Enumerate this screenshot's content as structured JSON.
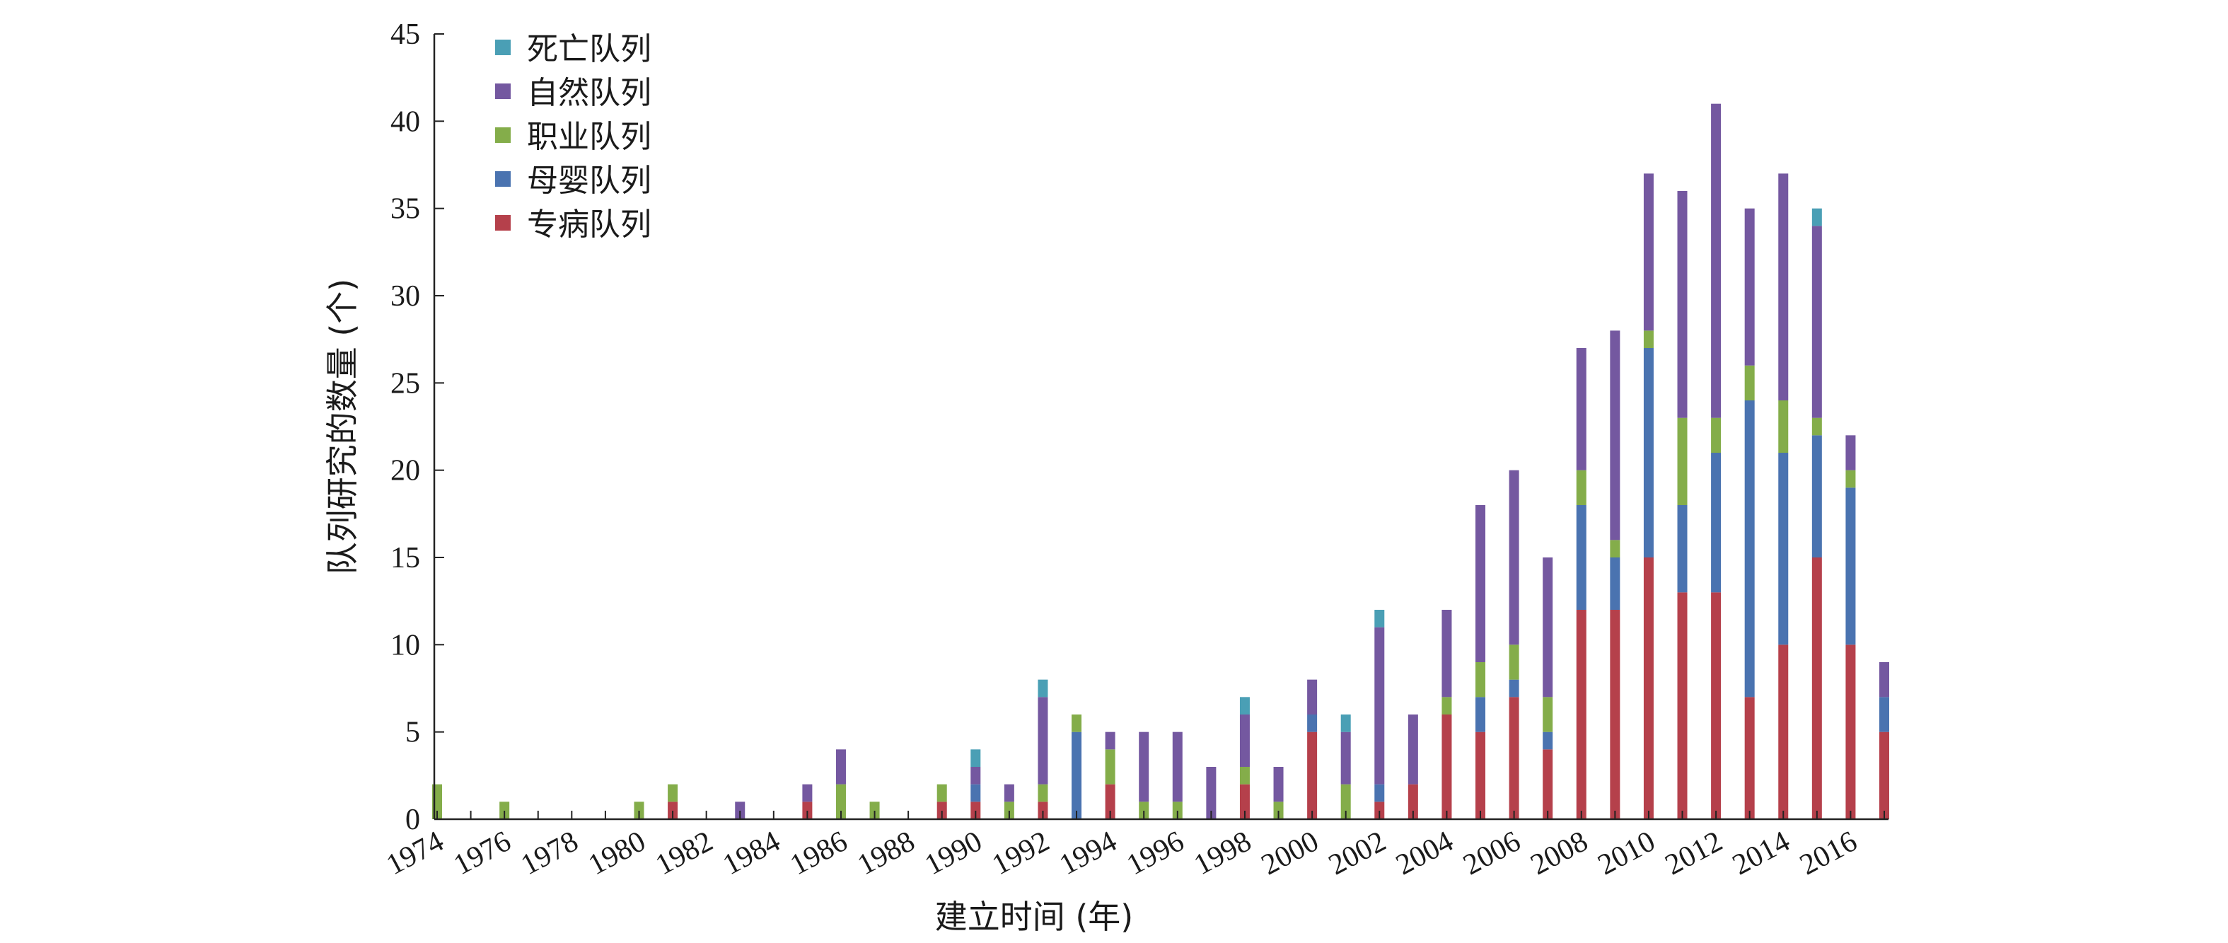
{
  "chart_data": {
    "type": "bar",
    "stacked": true,
    "title": "",
    "xlabel": "建立时间 (年)",
    "ylabel": "队列研究的数量 (个)",
    "ylim": [
      0,
      45
    ],
    "yticks": [
      "0",
      "5",
      "10",
      "15",
      "20",
      "25",
      "30",
      "35",
      "40",
      "45"
    ],
    "xtick_labels": [
      "1974",
      "1976",
      "1978",
      "1980",
      "1982",
      "1984",
      "1986",
      "1988",
      "1990",
      "1992",
      "1994",
      "1996",
      "1998",
      "2000",
      "2002",
      "2004",
      "2006",
      "2008",
      "2010",
      "2012",
      "2014",
      "2016"
    ],
    "categories": [
      1974,
      1975,
      1976,
      1977,
      1978,
      1979,
      1980,
      1981,
      1982,
      1983,
      1984,
      1985,
      1986,
      1987,
      1988,
      1989,
      1990,
      1991,
      1992,
      1993,
      1994,
      1995,
      1996,
      1997,
      1998,
      1999,
      2000,
      2001,
      2002,
      2003,
      2004,
      2005,
      2006,
      2007,
      2008,
      2009,
      2010,
      2011,
      2012,
      2013,
      2014,
      2015,
      2016,
      2017
    ],
    "grid": false,
    "legend_position": "top-left",
    "series": [
      {
        "name": "专病队列",
        "color": "#b5404b",
        "values": [
          0,
          0,
          0,
          0,
          0,
          0,
          0,
          1,
          0,
          0,
          0,
          1,
          0,
          0,
          0,
          1,
          1,
          0,
          1,
          0,
          2,
          0,
          0,
          0,
          2,
          0,
          5,
          0,
          1,
          2,
          6,
          5,
          7,
          4,
          12,
          12,
          15,
          13,
          13,
          7,
          10,
          15,
          10,
          5
        ]
      },
      {
        "name": "母婴队列",
        "color": "#4a73b0",
        "values": [
          0,
          0,
          0,
          0,
          0,
          0,
          0,
          0,
          0,
          0,
          0,
          0,
          0,
          0,
          0,
          0,
          1,
          0,
          0,
          5,
          0,
          0,
          0,
          0,
          0,
          0,
          1,
          0,
          1,
          0,
          0,
          2,
          1,
          1,
          6,
          3,
          12,
          5,
          8,
          17,
          11,
          7,
          9,
          2
        ]
      },
      {
        "name": "职业队列",
        "color": "#84ad4a",
        "values": [
          2,
          0,
          1,
          0,
          0,
          0,
          1,
          1,
          0,
          0,
          0,
          0,
          2,
          1,
          0,
          1,
          0,
          1,
          1,
          1,
          2,
          1,
          1,
          0,
          1,
          1,
          0,
          2,
          0,
          0,
          1,
          2,
          2,
          2,
          2,
          1,
          1,
          5,
          2,
          2,
          3,
          1,
          1,
          0
        ]
      },
      {
        "name": "自然队列",
        "color": "#7458a0",
        "values": [
          0,
          0,
          0,
          0,
          0,
          0,
          0,
          0,
          0,
          1,
          0,
          1,
          2,
          0,
          0,
          0,
          1,
          1,
          5,
          0,
          1,
          4,
          4,
          3,
          3,
          2,
          2,
          3,
          9,
          4,
          5,
          9,
          10,
          8,
          7,
          12,
          9,
          13,
          18,
          9,
          13,
          11,
          2,
          2
        ]
      },
      {
        "name": "死亡队列",
        "color": "#4a9fb5",
        "values": [
          0,
          0,
          0,
          0,
          0,
          0,
          0,
          0,
          0,
          0,
          0,
          0,
          0,
          0,
          0,
          0,
          1,
          0,
          1,
          0,
          0,
          0,
          0,
          0,
          1,
          0,
          0,
          1,
          1,
          0,
          0,
          0,
          0,
          0,
          0,
          0,
          0,
          0,
          0,
          0,
          0,
          1,
          0,
          0
        ]
      }
    ]
  }
}
